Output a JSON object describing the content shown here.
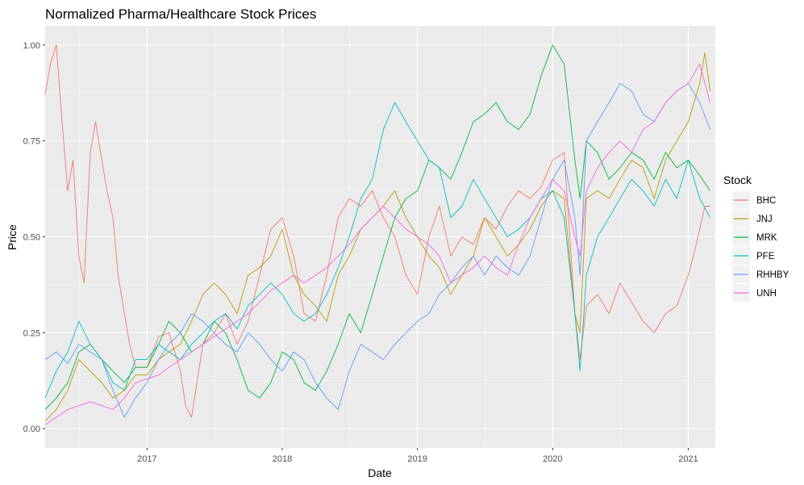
{
  "chart_data": {
    "type": "line",
    "title": "Normalized Pharma/Healthcare Stock Prices",
    "xlabel": "Date",
    "ylabel": "Price",
    "xlim": [
      "2016-04-01",
      "2021-03-15"
    ],
    "ylim": [
      -0.05,
      1.05
    ],
    "x_ticks": [
      "2017-01-01",
      "2018-01-01",
      "2019-01-01",
      "2020-01-01",
      "2021-01-01"
    ],
    "x_tick_labels": [
      "2017",
      "2018",
      "2019",
      "2020",
      "2021"
    ],
    "y_ticks": [
      0,
      0.25,
      0.5,
      0.75,
      1
    ],
    "y_tick_labels": [
      "0.00",
      "0.25",
      "0.50",
      "0.75",
      "1.00"
    ],
    "grid": true,
    "legend_title": "Stock",
    "legend_position": "right",
    "series": [
      {
        "name": "BHC",
        "color": "#F8766D",
        "x": [
          "2016-04-01",
          "2016-04-15",
          "2016-05-01",
          "2016-05-15",
          "2016-06-01",
          "2016-06-15",
          "2016-07-01",
          "2016-07-15",
          "2016-08-01",
          "2016-08-15",
          "2016-09-01",
          "2016-09-15",
          "2016-10-01",
          "2016-10-15",
          "2016-11-01",
          "2016-11-15",
          "2016-12-01",
          "2017-01-01",
          "2017-02-01",
          "2017-03-01",
          "2017-04-01",
          "2017-04-15",
          "2017-05-01",
          "2017-06-01",
          "2017-07-01",
          "2017-08-01",
          "2017-09-01",
          "2017-10-01",
          "2017-11-01",
          "2017-12-01",
          "2018-01-01",
          "2018-02-01",
          "2018-03-01",
          "2018-04-01",
          "2018-05-01",
          "2018-06-01",
          "2018-07-01",
          "2018-08-01",
          "2018-09-01",
          "2018-10-01",
          "2018-11-01",
          "2018-12-01",
          "2019-01-01",
          "2019-02-01",
          "2019-03-01",
          "2019-04-01",
          "2019-05-01",
          "2019-06-01",
          "2019-07-01",
          "2019-08-01",
          "2019-09-01",
          "2019-10-01",
          "2019-11-01",
          "2019-12-01",
          "2020-01-01",
          "2020-02-01",
          "2020-03-01",
          "2020-03-15",
          "2020-04-01",
          "2020-05-01",
          "2020-06-01",
          "2020-07-01",
          "2020-08-01",
          "2020-09-01",
          "2020-10-01",
          "2020-11-01",
          "2020-12-01",
          "2021-01-01",
          "2021-01-15",
          "2021-02-01",
          "2021-02-15",
          "2021-03-01"
        ],
        "y": [
          0.87,
          0.95,
          1.0,
          0.82,
          0.62,
          0.7,
          0.45,
          0.38,
          0.72,
          0.8,
          0.7,
          0.62,
          0.55,
          0.4,
          0.3,
          0.22,
          0.16,
          0.16,
          0.24,
          0.25,
          0.15,
          0.06,
          0.03,
          0.22,
          0.25,
          0.3,
          0.22,
          0.28,
          0.4,
          0.52,
          0.55,
          0.45,
          0.3,
          0.28,
          0.4,
          0.55,
          0.6,
          0.58,
          0.62,
          0.55,
          0.5,
          0.4,
          0.35,
          0.5,
          0.58,
          0.45,
          0.5,
          0.48,
          0.55,
          0.52,
          0.58,
          0.62,
          0.6,
          0.63,
          0.7,
          0.72,
          0.3,
          0.18,
          0.32,
          0.35,
          0.3,
          0.38,
          0.33,
          0.28,
          0.25,
          0.3,
          0.32,
          0.4,
          0.45,
          0.52,
          0.58,
          0.58
        ]
      },
      {
        "name": "JNJ",
        "color": "#B79F00",
        "x": [
          "2016-04-01",
          "2016-05-01",
          "2016-06-01",
          "2016-07-01",
          "2016-08-01",
          "2016-09-01",
          "2016-10-01",
          "2016-11-01",
          "2016-12-01",
          "2017-01-01",
          "2017-02-01",
          "2017-03-01",
          "2017-04-01",
          "2017-05-01",
          "2017-06-01",
          "2017-07-01",
          "2017-08-01",
          "2017-09-01",
          "2017-10-01",
          "2017-11-01",
          "2017-12-01",
          "2018-01-01",
          "2018-02-01",
          "2018-03-01",
          "2018-04-01",
          "2018-05-01",
          "2018-06-01",
          "2018-07-01",
          "2018-08-01",
          "2018-09-01",
          "2018-10-01",
          "2018-11-01",
          "2018-12-01",
          "2019-01-01",
          "2019-02-01",
          "2019-03-01",
          "2019-04-01",
          "2019-05-01",
          "2019-06-01",
          "2019-07-01",
          "2019-08-01",
          "2019-09-01",
          "2019-10-01",
          "2019-11-01",
          "2019-12-01",
          "2020-01-01",
          "2020-02-01",
          "2020-03-01",
          "2020-03-15",
          "2020-04-01",
          "2020-05-01",
          "2020-06-01",
          "2020-07-01",
          "2020-08-01",
          "2020-09-01",
          "2020-10-01",
          "2020-11-01",
          "2020-12-01",
          "2021-01-01",
          "2021-02-01",
          "2021-02-15",
          "2021-03-01"
        ],
        "y": [
          0.02,
          0.05,
          0.1,
          0.18,
          0.15,
          0.12,
          0.08,
          0.1,
          0.14,
          0.14,
          0.18,
          0.2,
          0.22,
          0.28,
          0.35,
          0.38,
          0.35,
          0.3,
          0.4,
          0.42,
          0.45,
          0.52,
          0.4,
          0.35,
          0.32,
          0.28,
          0.4,
          0.45,
          0.52,
          0.55,
          0.58,
          0.62,
          0.55,
          0.5,
          0.45,
          0.42,
          0.35,
          0.4,
          0.45,
          0.55,
          0.5,
          0.45,
          0.48,
          0.52,
          0.58,
          0.62,
          0.6,
          0.3,
          0.25,
          0.6,
          0.62,
          0.6,
          0.65,
          0.7,
          0.68,
          0.6,
          0.7,
          0.75,
          0.8,
          0.9,
          0.98,
          0.88
        ]
      },
      {
        "name": "MRK",
        "color": "#00BA38",
        "x": [
          "2016-04-01",
          "2016-05-01",
          "2016-06-01",
          "2016-07-01",
          "2016-08-01",
          "2016-09-01",
          "2016-10-01",
          "2016-11-01",
          "2016-12-01",
          "2017-01-01",
          "2017-02-01",
          "2017-03-01",
          "2017-04-01",
          "2017-05-01",
          "2017-06-01",
          "2017-07-01",
          "2017-08-01",
          "2017-09-01",
          "2017-10-01",
          "2017-11-01",
          "2017-12-01",
          "2018-01-01",
          "2018-02-01",
          "2018-03-01",
          "2018-04-01",
          "2018-05-01",
          "2018-06-01",
          "2018-07-01",
          "2018-08-01",
          "2018-09-01",
          "2018-10-01",
          "2018-11-01",
          "2018-12-01",
          "2019-01-01",
          "2019-02-01",
          "2019-03-01",
          "2019-04-01",
          "2019-05-01",
          "2019-06-01",
          "2019-07-01",
          "2019-08-01",
          "2019-09-01",
          "2019-10-01",
          "2019-11-01",
          "2019-12-01",
          "2020-01-01",
          "2020-02-01",
          "2020-03-01",
          "2020-03-15",
          "2020-04-01",
          "2020-05-01",
          "2020-06-01",
          "2020-07-01",
          "2020-08-01",
          "2020-09-01",
          "2020-10-01",
          "2020-11-01",
          "2020-12-01",
          "2021-01-01",
          "2021-02-01",
          "2021-03-01"
        ],
        "y": [
          0.05,
          0.08,
          0.12,
          0.2,
          0.22,
          0.18,
          0.15,
          0.12,
          0.16,
          0.16,
          0.22,
          0.28,
          0.25,
          0.2,
          0.22,
          0.28,
          0.25,
          0.18,
          0.1,
          0.08,
          0.12,
          0.2,
          0.18,
          0.12,
          0.1,
          0.15,
          0.22,
          0.3,
          0.25,
          0.35,
          0.45,
          0.55,
          0.6,
          0.62,
          0.7,
          0.68,
          0.65,
          0.72,
          0.8,
          0.82,
          0.85,
          0.8,
          0.78,
          0.82,
          0.92,
          1.0,
          0.95,
          0.7,
          0.6,
          0.75,
          0.72,
          0.65,
          0.68,
          0.72,
          0.7,
          0.65,
          0.72,
          0.68,
          0.7,
          0.66,
          0.62
        ]
      },
      {
        "name": "PFE",
        "color": "#00BFC4",
        "x": [
          "2016-04-01",
          "2016-05-01",
          "2016-06-01",
          "2016-07-01",
          "2016-08-01",
          "2016-09-01",
          "2016-10-01",
          "2016-11-01",
          "2016-12-01",
          "2017-01-01",
          "2017-02-01",
          "2017-03-01",
          "2017-04-01",
          "2017-05-01",
          "2017-06-01",
          "2017-07-01",
          "2017-08-01",
          "2017-09-01",
          "2017-10-01",
          "2017-11-01",
          "2017-12-01",
          "2018-01-01",
          "2018-02-01",
          "2018-03-01",
          "2018-04-01",
          "2018-05-01",
          "2018-06-01",
          "2018-07-01",
          "2018-08-01",
          "2018-09-01",
          "2018-10-01",
          "2018-11-01",
          "2018-12-01",
          "2019-01-01",
          "2019-02-01",
          "2019-03-01",
          "2019-04-01",
          "2019-05-01",
          "2019-06-01",
          "2019-07-01",
          "2019-08-01",
          "2019-09-01",
          "2019-10-01",
          "2019-11-01",
          "2019-12-01",
          "2020-01-01",
          "2020-02-01",
          "2020-03-01",
          "2020-03-15",
          "2020-04-01",
          "2020-05-01",
          "2020-06-01",
          "2020-07-01",
          "2020-08-01",
          "2020-09-01",
          "2020-10-01",
          "2020-11-01",
          "2020-12-01",
          "2021-01-01",
          "2021-02-01",
          "2021-03-01"
        ],
        "y": [
          0.08,
          0.15,
          0.2,
          0.28,
          0.22,
          0.18,
          0.12,
          0.1,
          0.18,
          0.18,
          0.22,
          0.2,
          0.18,
          0.22,
          0.25,
          0.28,
          0.3,
          0.26,
          0.32,
          0.35,
          0.38,
          0.35,
          0.3,
          0.28,
          0.3,
          0.35,
          0.42,
          0.5,
          0.6,
          0.65,
          0.78,
          0.85,
          0.8,
          0.75,
          0.7,
          0.68,
          0.55,
          0.58,
          0.65,
          0.6,
          0.55,
          0.5,
          0.52,
          0.55,
          0.6,
          0.62,
          0.55,
          0.3,
          0.15,
          0.4,
          0.5,
          0.55,
          0.6,
          0.65,
          0.62,
          0.58,
          0.65,
          0.6,
          0.7,
          0.6,
          0.55
        ]
      },
      {
        "name": "RHHBY",
        "color": "#619CFF",
        "x": [
          "2016-04-01",
          "2016-05-01",
          "2016-06-01",
          "2016-07-01",
          "2016-08-01",
          "2016-09-01",
          "2016-10-01",
          "2016-11-01",
          "2016-12-01",
          "2017-01-01",
          "2017-02-01",
          "2017-03-01",
          "2017-04-01",
          "2017-05-01",
          "2017-06-01",
          "2017-07-01",
          "2017-08-01",
          "2017-09-01",
          "2017-10-01",
          "2017-11-01",
          "2017-12-01",
          "2018-01-01",
          "2018-02-01",
          "2018-03-01",
          "2018-04-01",
          "2018-05-01",
          "2018-06-01",
          "2018-07-01",
          "2018-08-01",
          "2018-09-01",
          "2018-10-01",
          "2018-11-01",
          "2018-12-01",
          "2019-01-01",
          "2019-02-01",
          "2019-03-01",
          "2019-04-01",
          "2019-05-01",
          "2019-06-01",
          "2019-07-01",
          "2019-08-01",
          "2019-09-01",
          "2019-10-01",
          "2019-11-01",
          "2019-12-01",
          "2020-01-01",
          "2020-02-01",
          "2020-03-01",
          "2020-03-15",
          "2020-04-01",
          "2020-05-01",
          "2020-06-01",
          "2020-07-01",
          "2020-08-01",
          "2020-09-01",
          "2020-10-01",
          "2020-11-01",
          "2020-12-01",
          "2021-01-01",
          "2021-02-01",
          "2021-03-01"
        ],
        "y": [
          0.18,
          0.2,
          0.17,
          0.22,
          0.2,
          0.18,
          0.1,
          0.03,
          0.08,
          0.12,
          0.18,
          0.22,
          0.25,
          0.3,
          0.28,
          0.25,
          0.22,
          0.2,
          0.25,
          0.22,
          0.18,
          0.15,
          0.2,
          0.18,
          0.12,
          0.08,
          0.05,
          0.15,
          0.22,
          0.2,
          0.18,
          0.22,
          0.25,
          0.28,
          0.3,
          0.35,
          0.38,
          0.42,
          0.45,
          0.4,
          0.45,
          0.42,
          0.4,
          0.45,
          0.55,
          0.65,
          0.7,
          0.55,
          0.4,
          0.75,
          0.8,
          0.85,
          0.9,
          0.88,
          0.82,
          0.8,
          0.85,
          0.88,
          0.9,
          0.85,
          0.78
        ]
      },
      {
        "name": "UNH",
        "color": "#F564E3",
        "x": [
          "2016-04-01",
          "2016-05-01",
          "2016-06-01",
          "2016-07-01",
          "2016-08-01",
          "2016-09-01",
          "2016-10-01",
          "2016-11-01",
          "2016-12-01",
          "2017-01-01",
          "2017-02-01",
          "2017-03-01",
          "2017-04-01",
          "2017-05-01",
          "2017-06-01",
          "2017-07-01",
          "2017-08-01",
          "2017-09-01",
          "2017-10-01",
          "2017-11-01",
          "2017-12-01",
          "2018-01-01",
          "2018-02-01",
          "2018-03-01",
          "2018-04-01",
          "2018-05-01",
          "2018-06-01",
          "2018-07-01",
          "2018-08-01",
          "2018-09-01",
          "2018-10-01",
          "2018-11-01",
          "2018-12-01",
          "2019-01-01",
          "2019-02-01",
          "2019-03-01",
          "2019-04-01",
          "2019-05-01",
          "2019-06-01",
          "2019-07-01",
          "2019-08-01",
          "2019-09-01",
          "2019-10-01",
          "2019-11-01",
          "2019-12-01",
          "2020-01-01",
          "2020-02-01",
          "2020-03-01",
          "2020-03-15",
          "2020-04-01",
          "2020-05-01",
          "2020-06-01",
          "2020-07-01",
          "2020-08-01",
          "2020-09-01",
          "2020-10-01",
          "2020-11-01",
          "2020-12-01",
          "2021-01-01",
          "2021-02-01",
          "2021-03-01"
        ],
        "y": [
          0.01,
          0.03,
          0.05,
          0.06,
          0.07,
          0.06,
          0.05,
          0.08,
          0.12,
          0.13,
          0.14,
          0.16,
          0.18,
          0.2,
          0.22,
          0.24,
          0.26,
          0.28,
          0.3,
          0.33,
          0.36,
          0.38,
          0.4,
          0.38,
          0.4,
          0.42,
          0.45,
          0.48,
          0.52,
          0.55,
          0.58,
          0.55,
          0.52,
          0.5,
          0.48,
          0.45,
          0.38,
          0.4,
          0.42,
          0.45,
          0.42,
          0.4,
          0.48,
          0.55,
          0.6,
          0.65,
          0.62,
          0.5,
          0.45,
          0.62,
          0.68,
          0.72,
          0.75,
          0.72,
          0.78,
          0.8,
          0.85,
          0.88,
          0.9,
          0.95,
          0.85
        ]
      }
    ]
  }
}
